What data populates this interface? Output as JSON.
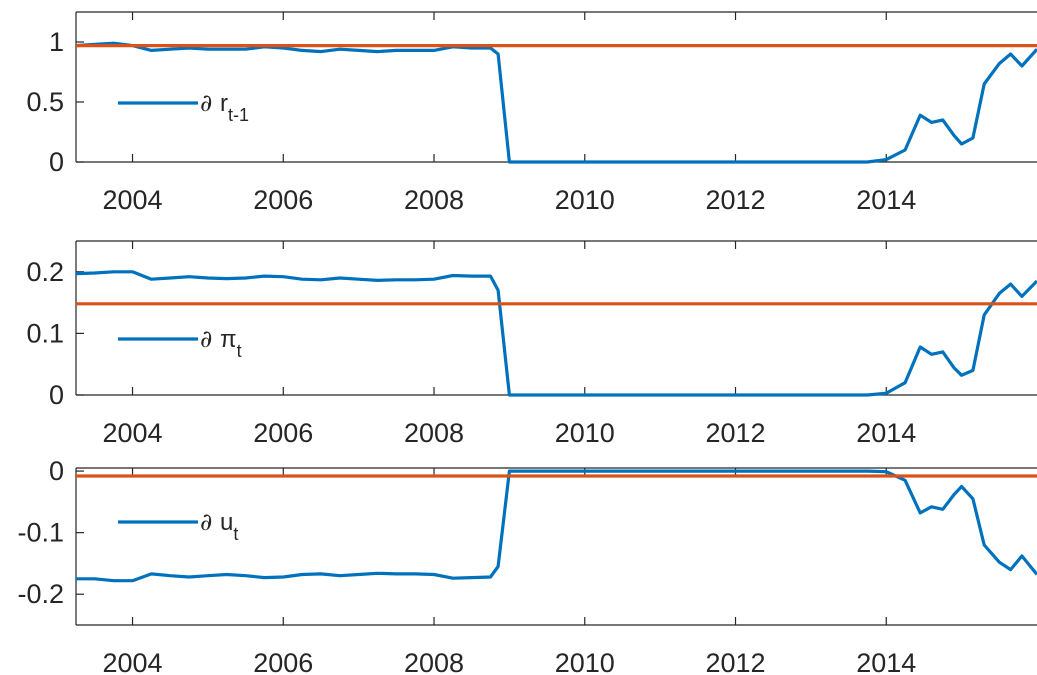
{
  "colors": {
    "series": "#0072BD",
    "reference": "#D95319",
    "axis": "#262626"
  },
  "chart_data": [
    {
      "type": "line",
      "legend": {
        "symbol": "∂",
        "var": "r",
        "sub": "t-1",
        "placement": "middle-left"
      },
      "xlim": [
        2003.25,
        2016.0
      ],
      "ylim": [
        0,
        1.25
      ],
      "xticks": [
        2004,
        2006,
        2008,
        2010,
        2012,
        2014
      ],
      "yticks": [
        0,
        0.5,
        1
      ],
      "ytick_labels": [
        "0",
        "0.5",
        "1"
      ],
      "reference": 0.97,
      "x": [
        2003.25,
        2003.5,
        2003.75,
        2004.0,
        2004.25,
        2004.5,
        2004.75,
        2005.0,
        2005.25,
        2005.5,
        2005.75,
        2006.0,
        2006.25,
        2006.5,
        2006.75,
        2007.0,
        2007.25,
        2007.5,
        2007.75,
        2008.0,
        2008.25,
        2008.5,
        2008.75,
        2008.85,
        2009.0,
        2010.0,
        2011.0,
        2012.0,
        2013.0,
        2013.75,
        2014.0,
        2014.25,
        2014.45,
        2014.6,
        2014.75,
        2014.9,
        2015.0,
        2015.15,
        2015.3,
        2015.5,
        2015.65,
        2015.8,
        2016.0
      ],
      "y": [
        0.97,
        0.98,
        0.99,
        0.97,
        0.93,
        0.94,
        0.95,
        0.94,
        0.94,
        0.94,
        0.96,
        0.95,
        0.93,
        0.92,
        0.94,
        0.93,
        0.92,
        0.93,
        0.93,
        0.93,
        0.96,
        0.95,
        0.95,
        0.9,
        0.0,
        0.0,
        0.0,
        0.0,
        0.0,
        0.0,
        0.02,
        0.1,
        0.39,
        0.33,
        0.35,
        0.22,
        0.15,
        0.2,
        0.65,
        0.82,
        0.9,
        0.8,
        0.94
      ]
    },
    {
      "type": "line",
      "legend": {
        "symbol": "∂",
        "var": "π",
        "sub": "t",
        "placement": "middle-left"
      },
      "xlim": [
        2003.25,
        2016.0
      ],
      "ylim": [
        0,
        0.25
      ],
      "xticks": [
        2004,
        2006,
        2008,
        2010,
        2012,
        2014
      ],
      "yticks": [
        0,
        0.1,
        0.2
      ],
      "ytick_labels": [
        "0",
        "0.1",
        "0.2"
      ],
      "reference": 0.148,
      "x": [
        2003.25,
        2003.5,
        2003.75,
        2004.0,
        2004.25,
        2004.5,
        2004.75,
        2005.0,
        2005.25,
        2005.5,
        2005.75,
        2006.0,
        2006.25,
        2006.5,
        2006.75,
        2007.0,
        2007.25,
        2007.5,
        2007.75,
        2008.0,
        2008.25,
        2008.5,
        2008.75,
        2008.85,
        2009.0,
        2010.0,
        2011.0,
        2012.0,
        2013.0,
        2013.75,
        2014.0,
        2014.25,
        2014.45,
        2014.6,
        2014.75,
        2014.9,
        2015.0,
        2015.15,
        2015.3,
        2015.5,
        2015.65,
        2015.8,
        2016.0
      ],
      "y": [
        0.197,
        0.198,
        0.2,
        0.2,
        0.188,
        0.19,
        0.192,
        0.19,
        0.189,
        0.19,
        0.193,
        0.192,
        0.188,
        0.187,
        0.19,
        0.188,
        0.186,
        0.187,
        0.187,
        0.188,
        0.194,
        0.193,
        0.193,
        0.17,
        0.0,
        0.0,
        0.0,
        0.0,
        0.0,
        0.0,
        0.003,
        0.02,
        0.078,
        0.066,
        0.07,
        0.044,
        0.032,
        0.04,
        0.13,
        0.165,
        0.18,
        0.16,
        0.185
      ]
    },
    {
      "type": "line",
      "legend": {
        "symbol": "∂",
        "var": "u",
        "sub": "t",
        "placement": "middle-left"
      },
      "xlim": [
        2003.25,
        2016.0
      ],
      "ylim": [
        -0.25,
        0.005
      ],
      "xticks": [
        2004,
        2006,
        2008,
        2010,
        2012,
        2014
      ],
      "yticks": [
        -0.2,
        -0.1,
        0
      ],
      "ytick_labels": [
        "-0.2",
        "-0.1",
        "0"
      ],
      "reference": -0.008,
      "x": [
        2003.25,
        2003.5,
        2003.75,
        2004.0,
        2004.25,
        2004.5,
        2004.75,
        2005.0,
        2005.25,
        2005.5,
        2005.75,
        2006.0,
        2006.25,
        2006.5,
        2006.75,
        2007.0,
        2007.25,
        2007.5,
        2007.75,
        2008.0,
        2008.25,
        2008.5,
        2008.75,
        2008.85,
        2009.0,
        2010.0,
        2011.0,
        2012.0,
        2013.0,
        2013.75,
        2014.0,
        2014.25,
        2014.45,
        2014.6,
        2014.75,
        2014.9,
        2015.0,
        2015.15,
        2015.3,
        2015.5,
        2015.65,
        2015.8,
        2016.0
      ],
      "y": [
        -0.175,
        -0.175,
        -0.178,
        -0.178,
        -0.167,
        -0.17,
        -0.172,
        -0.17,
        -0.168,
        -0.17,
        -0.173,
        -0.172,
        -0.168,
        -0.167,
        -0.17,
        -0.168,
        -0.166,
        -0.167,
        -0.167,
        -0.168,
        -0.174,
        -0.173,
        -0.172,
        -0.155,
        0.0,
        0.0,
        0.0,
        0.0,
        0.0,
        0.0,
        -0.001,
        -0.015,
        -0.068,
        -0.058,
        -0.062,
        -0.038,
        -0.025,
        -0.045,
        -0.12,
        -0.148,
        -0.16,
        -0.138,
        -0.168
      ]
    }
  ]
}
